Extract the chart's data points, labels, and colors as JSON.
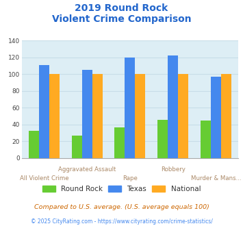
{
  "title_line1": "2019 Round Rock",
  "title_line2": "Violent Crime Comparison",
  "categories": [
    "All Violent Crime",
    "Aggravated Assault",
    "Rape",
    "Robbery",
    "Murder & Mans..."
  ],
  "series": {
    "Round Rock": [
      33,
      27,
      37,
      46,
      45
    ],
    "Texas": [
      111,
      105,
      120,
      122,
      97
    ],
    "National": [
      100,
      100,
      100,
      100,
      100
    ]
  },
  "colors": {
    "Round Rock": "#66cc33",
    "Texas": "#4488ee",
    "National": "#ffaa22"
  },
  "ylim": [
    0,
    140
  ],
  "yticks": [
    0,
    20,
    40,
    60,
    80,
    100,
    120,
    140
  ],
  "title_color": "#2266cc",
  "xlabel_color_odd": "#aa8866",
  "xlabel_color_even": "#aa8866",
  "grid_color": "#c8dde8",
  "plot_bg_color": "#ddeef5",
  "legend_labels": [
    "Round Rock",
    "Texas",
    "National"
  ],
  "footnote1": "Compared to U.S. average. (U.S. average equals 100)",
  "footnote2": "© 2025 CityRating.com - https://www.cityrating.com/crime-statistics/",
  "footnote1_color": "#cc6600",
  "footnote2_color": "#4488ee"
}
